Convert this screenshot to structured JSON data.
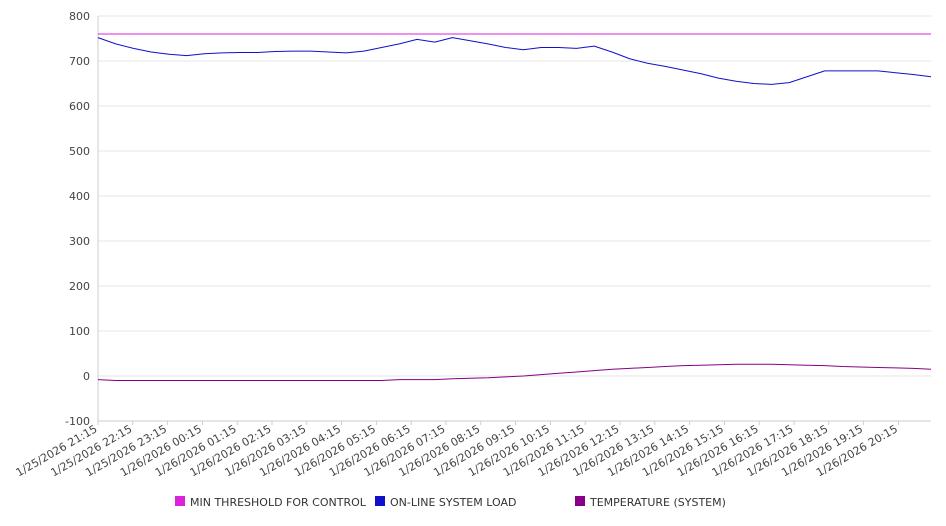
{
  "chart_data": {
    "type": "line",
    "title": "",
    "xlabel": "",
    "ylabel": "",
    "ylim": [
      -100,
      800
    ],
    "y_ticks": [
      -100,
      0,
      100,
      200,
      300,
      400,
      500,
      600,
      700,
      800
    ],
    "grid": "horizontal",
    "legend_position": "bottom",
    "x_tick_labels": [
      "1/25/2026 21:15",
      "1/25/2026 22:15",
      "1/25/2026 23:15",
      "1/26/2026 00:15",
      "1/26/2026 01:15",
      "1/26/2026 02:15",
      "1/26/2026 03:15",
      "1/26/2026 04:15",
      "1/26/2026 05:15",
      "1/26/2026 06:15",
      "1/26/2026 07:15",
      "1/26/2026 08:15",
      "1/26/2026 09:15",
      "1/26/2026 10:15",
      "1/26/2026 11:15",
      "1/26/2026 12:15",
      "1/26/2026 13:15",
      "1/26/2026 14:15",
      "1/26/2026 15:15",
      "1/26/2026 16:15",
      "1/26/2026 17:15",
      "1/26/2026 18:15",
      "1/26/2026 19:15",
      "1/26/2026 20:15"
    ],
    "x_points": [
      "1/25/2026 21:15",
      "1/25/2026 21:45",
      "1/25/2026 22:15",
      "1/25/2026 22:45",
      "1/25/2026 23:15",
      "1/25/2026 23:45",
      "1/26/2026 00:15",
      "1/26/2026 00:45",
      "1/26/2026 01:15",
      "1/26/2026 01:45",
      "1/26/2026 02:15",
      "1/26/2026 02:45",
      "1/26/2026 03:15",
      "1/26/2026 03:45",
      "1/26/2026 04:15",
      "1/26/2026 04:45",
      "1/26/2026 05:15",
      "1/26/2026 05:45",
      "1/26/2026 06:15",
      "1/26/2026 06:45",
      "1/26/2026 07:15",
      "1/26/2026 07:45",
      "1/26/2026 08:15",
      "1/26/2026 08:45",
      "1/26/2026 09:15",
      "1/26/2026 09:45",
      "1/26/2026 10:15",
      "1/26/2026 10:45",
      "1/26/2026 11:15",
      "1/26/2026 11:45",
      "1/26/2026 12:15",
      "1/26/2026 12:45",
      "1/26/2026 13:15",
      "1/26/2026 13:45",
      "1/26/2026 14:15",
      "1/26/2026 14:45",
      "1/26/2026 15:15",
      "1/26/2026 15:45",
      "1/26/2026 16:15",
      "1/26/2026 16:45",
      "1/26/2026 17:15",
      "1/26/2026 17:45",
      "1/26/2026 18:15",
      "1/26/2026 18:45",
      "1/26/2026 19:15",
      "1/26/2026 19:45",
      "1/26/2026 20:15",
      "1/26/2026 20:45"
    ],
    "series": [
      {
        "name": "MIN THRESHOLD FOR CONTROL",
        "color": "#dd22dd",
        "values": [
          760,
          760,
          760,
          760,
          760,
          760,
          760,
          760,
          760,
          760,
          760,
          760,
          760,
          760,
          760,
          760,
          760,
          760,
          760,
          760,
          760,
          760,
          760,
          760,
          760,
          760,
          760,
          760,
          760,
          760,
          760,
          760,
          760,
          760,
          760,
          760,
          760,
          760,
          760,
          760,
          760,
          760,
          760,
          760,
          760,
          760,
          760,
          760
        ]
      },
      {
        "name": "ON-LINE SYSTEM LOAD",
        "color": "#1010cc",
        "values": [
          752,
          738,
          728,
          720,
          715,
          712,
          716,
          718,
          719,
          719,
          721,
          722,
          722,
          720,
          718,
          722,
          730,
          738,
          748,
          742,
          752,
          745,
          738,
          730,
          725,
          730,
          730,
          728,
          733,
          720,
          705,
          695,
          688,
          680,
          672,
          662,
          655,
          650,
          648,
          652,
          665,
          678,
          678,
          678,
          678,
          674,
          670,
          665
        ]
      },
      {
        "name": "TEMPERATURE (SYSTEM)",
        "color": "#880088",
        "values": [
          -8,
          -10,
          -10,
          -10,
          -10,
          -10,
          -10,
          -10,
          -10,
          -10,
          -10,
          -10,
          -10,
          -10,
          -10,
          -10,
          -10,
          -8,
          -8,
          -8,
          -6,
          -5,
          -4,
          -2,
          0,
          3,
          6,
          9,
          12,
          15,
          17,
          19,
          21,
          23,
          24,
          25,
          26,
          26,
          26,
          25,
          24,
          23,
          21,
          20,
          19,
          18,
          17,
          15
        ]
      }
    ]
  }
}
